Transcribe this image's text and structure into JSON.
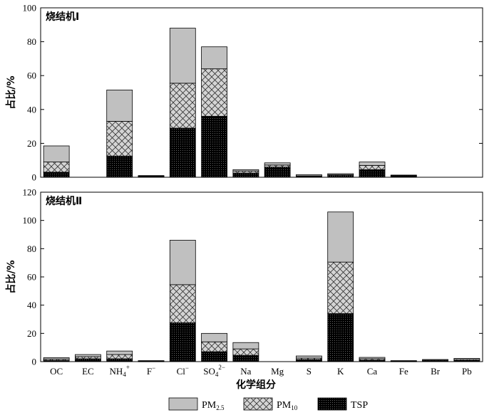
{
  "chart_data": {
    "type": "bar",
    "stacked": true,
    "categories": [
      "OC",
      "EC",
      "NH4+",
      "F−",
      "Cl−",
      "SO42−",
      "Na",
      "Mg",
      "S",
      "K",
      "Ca",
      "Fe",
      "Br",
      "Pb"
    ],
    "category_labels": [
      {
        "base": "OC",
        "sup": "",
        "sub": "",
        "sup2": ""
      },
      {
        "base": "EC",
        "sup": "",
        "sub": "",
        "sup2": ""
      },
      {
        "base": "NH",
        "sub": "4",
        "sup2": "+",
        "sup": ""
      },
      {
        "base": "F",
        "sup": "−",
        "sub": "",
        "sup2": ""
      },
      {
        "base": "Cl",
        "sup": "−",
        "sub": "",
        "sup2": ""
      },
      {
        "base": "SO",
        "sub": "4",
        "sup2": "2−",
        "sup": ""
      },
      {
        "base": "Na",
        "sup": "",
        "sub": "",
        "sup2": ""
      },
      {
        "base": "Mg",
        "sup": "",
        "sub": "",
        "sup2": ""
      },
      {
        "base": "S",
        "sup": "",
        "sub": "",
        "sup2": ""
      },
      {
        "base": "K",
        "sup": "",
        "sub": "",
        "sup2": ""
      },
      {
        "base": "Ca",
        "sup": "",
        "sub": "",
        "sup2": ""
      },
      {
        "base": "Fe",
        "sup": "",
        "sub": "",
        "sup2": ""
      },
      {
        "base": "Br",
        "sup": "",
        "sub": "",
        "sup2": ""
      },
      {
        "base": "Pb",
        "sup": "",
        "sub": "",
        "sup2": ""
      }
    ],
    "xlabel": "化学组分",
    "legend": [
      {
        "key": "pm25",
        "base": "PM",
        "sub": "2.5",
        "color": "#c0c0c0",
        "pattern": "solid"
      },
      {
        "key": "pm10",
        "base": "PM",
        "sub": "10",
        "color": "#d0d0d0",
        "pattern": "crosshatch"
      },
      {
        "key": "tsp",
        "base": "TSP",
        "sub": "",
        "color": "#000000",
        "pattern": "dots"
      }
    ],
    "legend_position": "bottom",
    "panels": [
      {
        "title": "烧结机Ⅰ",
        "ylabel": "占比/%",
        "ylim": [
          0,
          100
        ],
        "yticks": [
          0,
          20,
          40,
          60,
          80,
          100
        ],
        "series": [
          {
            "key": "tsp",
            "values": [
              3,
              0,
              12.5,
              0.5,
              29,
              36,
              2.5,
              6,
              0.5,
              1,
              4.5,
              0.8,
              0,
              0
            ]
          },
          {
            "key": "pm10",
            "values": [
              6,
              0,
              20.5,
              0.2,
              26.5,
              28,
              1.2,
              1.2,
              0.3,
              0.5,
              2.5,
              0.2,
              0,
              0
            ]
          },
          {
            "key": "pm25",
            "values": [
              9.5,
              0,
              18.5,
              0.3,
              32.5,
              13,
              0.8,
              1.3,
              0.7,
              0.6,
              2,
              0.3,
              0,
              0
            ]
          }
        ]
      },
      {
        "title": "烧结机Ⅱ",
        "ylabel": "占比/%",
        "ylim": [
          0,
          120
        ],
        "yticks": [
          0,
          20,
          40,
          60,
          80,
          100,
          120
        ],
        "series": [
          {
            "key": "tsp",
            "values": [
              0.8,
              2,
              2,
              0.3,
              27.5,
              7,
              4.5,
              0,
              1.5,
              34,
              1,
              0.3,
              0.5,
              0.8
            ]
          },
          {
            "key": "pm10",
            "values": [
              1,
              1.5,
              3,
              0.2,
              27,
              7,
              4.5,
              0,
              1,
              36.5,
              1,
              0.2,
              0.5,
              0.7
            ]
          },
          {
            "key": "pm25",
            "values": [
              1,
              1.5,
              2.5,
              0.2,
              31.5,
              6,
              4.5,
              0,
              1.5,
              35.5,
              1,
              0.2,
              0.5,
              0.8
            ]
          }
        ]
      }
    ]
  }
}
